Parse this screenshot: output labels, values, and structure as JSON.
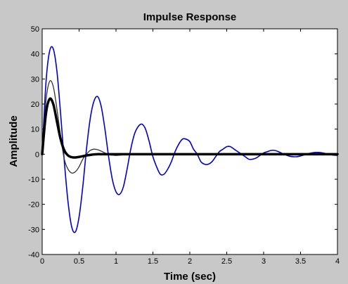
{
  "chart_data": {
    "type": "line",
    "title": "Impulse Response",
    "xlabel": "Time (sec)",
    "ylabel": "Amplitude",
    "xlim": [
      0,
      4
    ],
    "ylim": [
      -40,
      50
    ],
    "grid": false,
    "legend": "none",
    "x_ticks": [
      "0",
      "0.5",
      "1",
      "1.5",
      "2",
      "2.5",
      "3",
      "3.5",
      "4"
    ],
    "y_ticks": [
      "-40",
      "-30",
      "-20",
      "-10",
      "0",
      "10",
      "20",
      "30",
      "40",
      "50"
    ],
    "x_tick_values": [
      0,
      0.5,
      1,
      1.5,
      2,
      2.5,
      3,
      3.5,
      4
    ],
    "y_tick_values": [
      -40,
      -30,
      -20,
      -10,
      0,
      10,
      20,
      30,
      40,
      50
    ],
    "background_color": "#ffffff",
    "figure_color": "#c8c8c8",
    "series": [
      {
        "color": "#0000cc",
        "line_width": 1.6,
        "x": [
          0,
          0.05,
          0.1,
          0.15,
          0.2,
          0.25,
          0.3,
          0.35,
          0.4,
          0.45,
          0.5,
          0.55,
          0.6,
          0.65,
          0.7,
          0.75,
          0.8,
          0.85,
          0.9,
          0.95,
          1.0,
          1.05,
          1.1,
          1.15,
          1.2,
          1.25,
          1.3,
          1.35,
          1.4,
          1.45,
          1.5,
          1.55,
          1.6,
          1.65,
          1.7,
          1.75,
          1.8,
          1.85,
          1.9,
          1.95,
          2.0,
          2.05,
          2.1,
          2.15,
          2.2,
          2.25,
          2.3,
          2.35,
          2.4,
          2.45,
          2.5,
          2.55,
          2.6,
          2.65,
          2.7,
          2.75,
          2.8,
          2.85,
          2.9,
          2.95,
          3.0,
          3.05,
          3.1,
          3.15,
          3.2,
          3.25,
          3.3,
          3.35,
          3.4,
          3.45,
          3.5,
          3.55,
          3.6,
          3.65,
          3.7,
          3.75,
          3.8,
          3.85,
          3.9,
          3.95,
          4.0
        ],
        "y": [
          0,
          28,
          41,
          42,
          33,
          16,
          -3,
          -19,
          -29,
          -31,
          -25,
          -13,
          2,
          14,
          21,
          23,
          19,
          10,
          -1,
          -10,
          -15,
          -16,
          -13,
          -6,
          2,
          8,
          11,
          12,
          10,
          5,
          -1,
          -5,
          -8,
          -8,
          -6,
          -3,
          1,
          4,
          6,
          6,
          5,
          2,
          0,
          -3,
          -4,
          -4,
          -3,
          -1,
          1,
          2,
          3,
          3,
          2,
          1,
          0,
          -1,
          -2,
          -2,
          -1.5,
          -0.5,
          0.5,
          1,
          1.5,
          1.5,
          1,
          0.3,
          -0.3,
          -0.8,
          -1,
          -1,
          -0.7,
          -0.3,
          0.2,
          0.5,
          0.7,
          0.7,
          0.5,
          0.2,
          -0.1,
          -0.4,
          -0.5
        ]
      },
      {
        "color": "#333333",
        "line_width": 1.3,
        "x": [
          0,
          0.05,
          0.1,
          0.15,
          0.2,
          0.25,
          0.3,
          0.35,
          0.4,
          0.45,
          0.5,
          0.55,
          0.6,
          0.65,
          0.7,
          0.75,
          0.8,
          0.85,
          0.9,
          0.95,
          1.0,
          1.05,
          1.1,
          1.15,
          1.2,
          1.25,
          1.3,
          1.35,
          1.4,
          1.5,
          2.0,
          2.5,
          3.0,
          3.5,
          4.0
        ],
        "y": [
          0,
          21,
          29,
          27,
          18,
          7,
          -2,
          -6,
          -7.5,
          -7,
          -5,
          -2,
          0,
          1.5,
          2,
          1.8,
          1.2,
          0.5,
          -0.2,
          -0.4,
          -0.5,
          -0.4,
          -0.2,
          0,
          0.1,
          0.15,
          0.1,
          0.05,
          0,
          0,
          0,
          0,
          0,
          0,
          0
        ]
      },
      {
        "color": "#000000",
        "line_width": 3.5,
        "x": [
          0,
          0.05,
          0.1,
          0.15,
          0.2,
          0.25,
          0.3,
          0.35,
          0.4,
          0.45,
          0.5,
          0.55,
          0.6,
          0.65,
          0.7,
          0.75,
          0.8,
          0.85,
          0.9,
          1.0,
          1.5,
          2.0,
          2.5,
          3.0,
          3.5,
          4.0
        ],
        "y": [
          0,
          16,
          22,
          20,
          13,
          6,
          1.5,
          -0.5,
          -1.2,
          -1.3,
          -1.1,
          -0.8,
          -0.5,
          -0.3,
          -0.1,
          0,
          0,
          0,
          0,
          0,
          0,
          0,
          0,
          0,
          0,
          0
        ]
      }
    ]
  }
}
